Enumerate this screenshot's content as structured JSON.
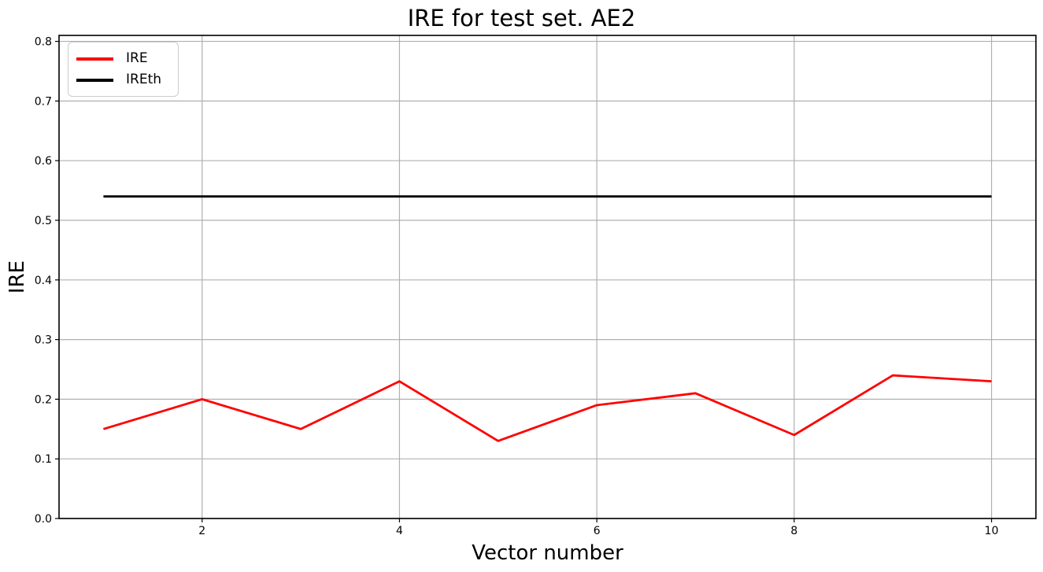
{
  "figure": {
    "title": "IRE for test set. AE2",
    "xlabel": "Vector number",
    "ylabel": "IRE"
  },
  "legend": {
    "items": [
      {
        "label": "IRE",
        "color": "#ff0000"
      },
      {
        "label": "IREth",
        "color": "#000000"
      }
    ]
  },
  "chart_data": {
    "type": "line",
    "title": "IRE for test set. AE2",
    "xlabel": "Vector number",
    "ylabel": "IRE",
    "x": [
      1,
      2,
      3,
      4,
      5,
      6,
      7,
      8,
      9,
      10
    ],
    "series": [
      {
        "name": "IRE",
        "color": "#ff0000",
        "values": [
          0.15,
          0.2,
          0.15,
          0.23,
          0.13,
          0.19,
          0.21,
          0.14,
          0.24,
          0.23
        ]
      },
      {
        "name": "IREth",
        "color": "#000000",
        "values": [
          0.54,
          0.54,
          0.54,
          0.54,
          0.54,
          0.54,
          0.54,
          0.54,
          0.54,
          0.54
        ]
      }
    ],
    "xticks": [
      2,
      4,
      6,
      8,
      10
    ],
    "xticklabels": [
      "2",
      "4",
      "6",
      "8",
      "10"
    ],
    "yticks": [
      0.0,
      0.1,
      0.2,
      0.3,
      0.4,
      0.5,
      0.6,
      0.7,
      0.8
    ],
    "yticklabels": [
      "0.0",
      "0.1",
      "0.2",
      "0.3",
      "0.4",
      "0.5",
      "0.6",
      "0.7",
      "0.8"
    ],
    "xlim": [
      0.55,
      10.45
    ],
    "ylim": [
      0.0,
      0.81
    ],
    "grid": true,
    "grid_color": "#b0b0b0",
    "spine_color": "#000000",
    "legend_position": "upper left"
  }
}
